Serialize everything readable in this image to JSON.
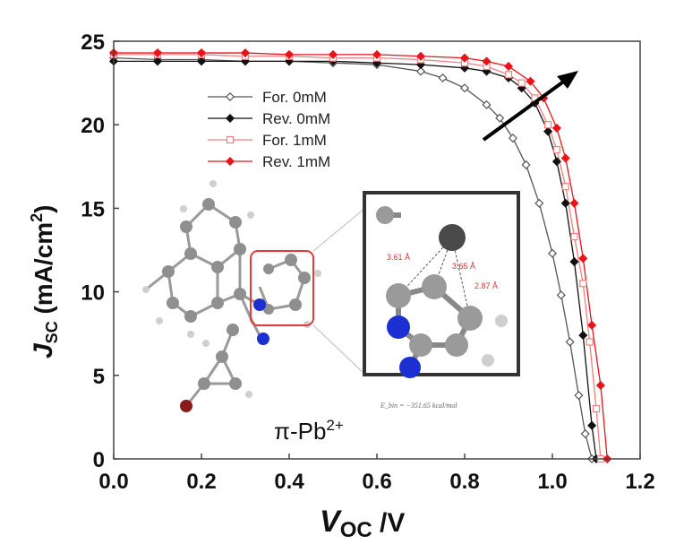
{
  "chart_data": {
    "type": "line",
    "xlabel": "V",
    "xlabel_sub": "OC",
    "xlabel_unit": " /V",
    "ylabel": "J",
    "ylabel_sub": "SC",
    "ylabel_unit": " (mA/cm",
    "ylabel_sup": "2",
    "ylabel_close": ")",
    "xlim": [
      0.0,
      1.2
    ],
    "ylim": [
      0,
      25
    ],
    "x_ticks": [
      "0.0",
      "0.2",
      "0.4",
      "0.6",
      "0.8",
      "1.0",
      "1.2"
    ],
    "y_ticks": [
      "0",
      "5",
      "10",
      "15",
      "20",
      "25"
    ],
    "grid": false,
    "legend_position": "upper-left",
    "series": [
      {
        "name": "For.  0mM",
        "color": "#555555",
        "marker": "diamond-open",
        "x": [
          0.0,
          0.1,
          0.2,
          0.3,
          0.4,
          0.5,
          0.6,
          0.7,
          0.75,
          0.8,
          0.85,
          0.88,
          0.91,
          0.94,
          0.97,
          1.0,
          1.02,
          1.04,
          1.06,
          1.075,
          1.09
        ],
        "y": [
          24.0,
          23.9,
          23.9,
          23.8,
          23.8,
          23.7,
          23.6,
          23.2,
          22.8,
          22.2,
          21.2,
          20.4,
          19.2,
          17.6,
          15.3,
          12.3,
          9.8,
          7.0,
          3.8,
          1.5,
          0.0
        ]
      },
      {
        "name": "Rev. 0mM",
        "color": "#111111",
        "marker": "diamond-filled",
        "x": [
          0.0,
          0.1,
          0.2,
          0.3,
          0.4,
          0.5,
          0.6,
          0.7,
          0.8,
          0.85,
          0.9,
          0.93,
          0.96,
          0.99,
          1.01,
          1.03,
          1.05,
          1.07,
          1.09,
          1.1
        ],
        "y": [
          23.8,
          23.8,
          23.8,
          23.8,
          23.8,
          23.8,
          23.7,
          23.6,
          23.4,
          23.2,
          22.8,
          22.2,
          21.3,
          19.6,
          17.8,
          15.3,
          11.8,
          7.4,
          2.0,
          0.0
        ]
      },
      {
        "name": "For.  1mM",
        "color": "#f08080",
        "marker": "square-open",
        "x": [
          0.0,
          0.1,
          0.2,
          0.3,
          0.4,
          0.5,
          0.6,
          0.7,
          0.8,
          0.85,
          0.9,
          0.93,
          0.96,
          0.99,
          1.01,
          1.03,
          1.05,
          1.07,
          1.085,
          1.1,
          1.11
        ],
        "y": [
          24.2,
          24.2,
          24.2,
          24.1,
          24.1,
          24.0,
          24.0,
          23.9,
          23.7,
          23.5,
          23.0,
          22.5,
          21.6,
          20.0,
          18.5,
          16.3,
          13.3,
          10.5,
          7.0,
          3.0,
          0.0
        ]
      },
      {
        "name": "Rev.  1mM",
        "color": "#e8141a",
        "marker": "diamond-filled",
        "x": [
          0.0,
          0.1,
          0.2,
          0.3,
          0.4,
          0.5,
          0.6,
          0.7,
          0.8,
          0.85,
          0.9,
          0.95,
          0.98,
          1.01,
          1.03,
          1.05,
          1.07,
          1.09,
          1.11,
          1.125
        ],
        "y": [
          24.3,
          24.3,
          24.3,
          24.3,
          24.2,
          24.2,
          24.2,
          24.1,
          24.0,
          23.8,
          23.5,
          22.6,
          21.6,
          19.8,
          18.0,
          15.3,
          12.0,
          8.0,
          4.4,
          0.0
        ]
      }
    ],
    "annotations": {
      "inset_label": "π-Pb",
      "inset_label_sup": "2+",
      "inset_distances": [
        "3.61 Å",
        "3.65 Å",
        "2.87 Å"
      ],
      "inset_caption": "E_bin = −351.65 kcal/mol",
      "arrow_color": "#000000"
    }
  }
}
